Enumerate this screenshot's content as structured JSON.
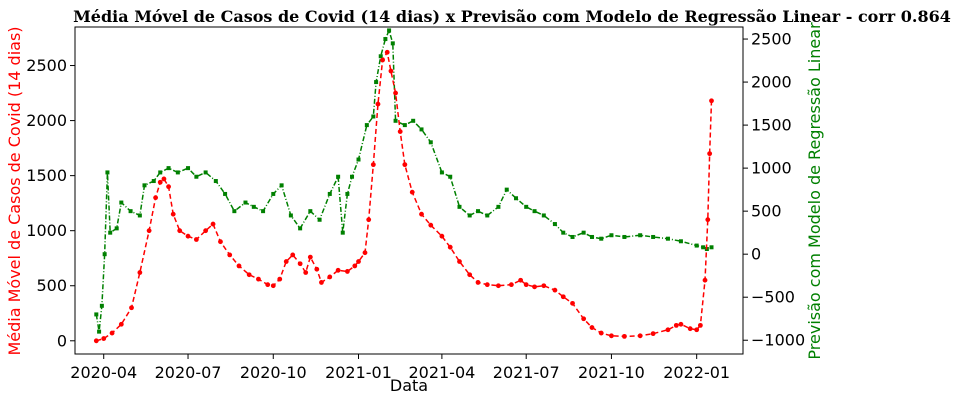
{
  "chart_data": {
    "type": "line",
    "title": "Média Móvel de Casos de Covid (14 dias) x Previsão com Modelo de Regressão Linear - corr 0.864",
    "xlabel": "Data",
    "ylabel_left": "Média Móvel de Casos de Covid (14 dias)",
    "ylabel_right": "Previsão com Modelo de Regressão Linear",
    "xlim": [
      "2020-03-01",
      "2022-02-20"
    ],
    "ylim_left": [
      -120,
      2850
    ],
    "ylim_right": [
      -1160,
      2640
    ],
    "x_ticks": [
      {
        "date": "2020-04-01",
        "label": "2020-04"
      },
      {
        "date": "2020-07-01",
        "label": "2020-07"
      },
      {
        "date": "2020-10-01",
        "label": "2020-10"
      },
      {
        "date": "2021-01-01",
        "label": "2021-01"
      },
      {
        "date": "2021-04-01",
        "label": "2021-04"
      },
      {
        "date": "2021-07-01",
        "label": "2021-07"
      },
      {
        "date": "2021-10-01",
        "label": "2021-10"
      },
      {
        "date": "2022-01-01",
        "label": "2022-01"
      }
    ],
    "y_ticks_left": [
      0,
      500,
      1000,
      1500,
      2000,
      2500
    ],
    "y_ticks_right": [
      -1000,
      -500,
      0,
      500,
      1000,
      1500,
      2000,
      2500
    ],
    "colors": {
      "left": "#ff0000",
      "right": "#008000"
    },
    "grid": false,
    "series": [
      {
        "axis": "left",
        "color": "#ff0000",
        "points": [
          [
            "2020-03-24",
            0
          ],
          [
            "2020-04-01",
            20
          ],
          [
            "2020-04-10",
            70
          ],
          [
            "2020-04-20",
            150
          ],
          [
            "2020-05-01",
            300
          ],
          [
            "2020-05-10",
            620
          ],
          [
            "2020-05-20",
            1000
          ],
          [
            "2020-05-27",
            1300
          ],
          [
            "2020-06-01",
            1440
          ],
          [
            "2020-06-05",
            1470
          ],
          [
            "2020-06-10",
            1400
          ],
          [
            "2020-06-15",
            1150
          ],
          [
            "2020-06-22",
            1000
          ],
          [
            "2020-07-01",
            950
          ],
          [
            "2020-07-10",
            920
          ],
          [
            "2020-07-20",
            1000
          ],
          [
            "2020-07-28",
            1060
          ],
          [
            "2020-08-05",
            900
          ],
          [
            "2020-08-15",
            780
          ],
          [
            "2020-08-25",
            680
          ],
          [
            "2020-09-05",
            600
          ],
          [
            "2020-09-15",
            560
          ],
          [
            "2020-09-25",
            510
          ],
          [
            "2020-10-01",
            500
          ],
          [
            "2020-10-08",
            560
          ],
          [
            "2020-10-15",
            720
          ],
          [
            "2020-10-22",
            780
          ],
          [
            "2020-10-30",
            700
          ],
          [
            "2020-11-05",
            620
          ],
          [
            "2020-11-10",
            760
          ],
          [
            "2020-11-17",
            650
          ],
          [
            "2020-11-22",
            530
          ],
          [
            "2020-12-01",
            580
          ],
          [
            "2020-12-10",
            640
          ],
          [
            "2020-12-20",
            630
          ],
          [
            "2020-12-28",
            680
          ],
          [
            "2021-01-01",
            720
          ],
          [
            "2021-01-08",
            800
          ],
          [
            "2021-01-12",
            1100
          ],
          [
            "2021-01-17",
            1600
          ],
          [
            "2021-01-22",
            2150
          ],
          [
            "2021-01-27",
            2550
          ],
          [
            "2021-02-01",
            2620
          ],
          [
            "2021-02-05",
            2450
          ],
          [
            "2021-02-10",
            2250
          ],
          [
            "2021-02-15",
            1900
          ],
          [
            "2021-02-20",
            1600
          ],
          [
            "2021-02-28",
            1350
          ],
          [
            "2021-03-10",
            1150
          ],
          [
            "2021-03-20",
            1050
          ],
          [
            "2021-04-01",
            950
          ],
          [
            "2021-04-10",
            850
          ],
          [
            "2021-04-20",
            720
          ],
          [
            "2021-05-01",
            600
          ],
          [
            "2021-05-10",
            530
          ],
          [
            "2021-05-20",
            510
          ],
          [
            "2021-06-01",
            500
          ],
          [
            "2021-06-15",
            510
          ],
          [
            "2021-06-25",
            550
          ],
          [
            "2021-07-01",
            510
          ],
          [
            "2021-07-10",
            490
          ],
          [
            "2021-07-20",
            500
          ],
          [
            "2021-08-01",
            460
          ],
          [
            "2021-08-10",
            400
          ],
          [
            "2021-08-20",
            340
          ],
          [
            "2021-09-01",
            200
          ],
          [
            "2021-09-10",
            120
          ],
          [
            "2021-09-20",
            70
          ],
          [
            "2021-10-01",
            45
          ],
          [
            "2021-10-15",
            40
          ],
          [
            "2021-11-01",
            45
          ],
          [
            "2021-11-15",
            65
          ],
          [
            "2021-12-01",
            100
          ],
          [
            "2021-12-10",
            140
          ],
          [
            "2021-12-15",
            150
          ],
          [
            "2021-12-25",
            110
          ],
          [
            "2022-01-01",
            100
          ],
          [
            "2022-01-05",
            140
          ],
          [
            "2022-01-10",
            550
          ],
          [
            "2022-01-13",
            1100
          ],
          [
            "2022-01-15",
            1700
          ],
          [
            "2022-01-17",
            2180
          ]
        ]
      },
      {
        "axis": "right",
        "color": "#008000",
        "points": [
          [
            "2020-03-24",
            -700
          ],
          [
            "2020-03-27",
            -900
          ],
          [
            "2020-03-30",
            -600
          ],
          [
            "2020-04-02",
            0
          ],
          [
            "2020-04-05",
            950
          ],
          [
            "2020-04-08",
            250
          ],
          [
            "2020-04-15",
            300
          ],
          [
            "2020-04-20",
            600
          ],
          [
            "2020-04-30",
            500
          ],
          [
            "2020-05-10",
            450
          ],
          [
            "2020-05-15",
            800
          ],
          [
            "2020-05-25",
            850
          ],
          [
            "2020-06-01",
            950
          ],
          [
            "2020-06-10",
            1000
          ],
          [
            "2020-06-20",
            950
          ],
          [
            "2020-07-01",
            1000
          ],
          [
            "2020-07-10",
            900
          ],
          [
            "2020-07-20",
            950
          ],
          [
            "2020-07-31",
            850
          ],
          [
            "2020-08-10",
            700
          ],
          [
            "2020-08-20",
            500
          ],
          [
            "2020-09-01",
            600
          ],
          [
            "2020-09-10",
            550
          ],
          [
            "2020-09-20",
            500
          ],
          [
            "2020-10-01",
            700
          ],
          [
            "2020-10-10",
            800
          ],
          [
            "2020-10-20",
            450
          ],
          [
            "2020-10-30",
            300
          ],
          [
            "2020-11-10",
            500
          ],
          [
            "2020-11-20",
            400
          ],
          [
            "2020-12-01",
            700
          ],
          [
            "2020-12-10",
            900
          ],
          [
            "2020-12-15",
            250
          ],
          [
            "2020-12-20",
            700
          ],
          [
            "2020-12-25",
            900
          ],
          [
            "2021-01-01",
            1100
          ],
          [
            "2021-01-10",
            1500
          ],
          [
            "2021-01-17",
            1600
          ],
          [
            "2021-01-20",
            2000
          ],
          [
            "2021-01-25",
            2300
          ],
          [
            "2021-01-30",
            2500
          ],
          [
            "2021-02-03",
            2600
          ],
          [
            "2021-02-07",
            2450
          ],
          [
            "2021-02-10",
            1550
          ],
          [
            "2021-02-20",
            1500
          ],
          [
            "2021-03-01",
            1550
          ],
          [
            "2021-03-10",
            1450
          ],
          [
            "2021-03-20",
            1300
          ],
          [
            "2021-04-01",
            950
          ],
          [
            "2021-04-10",
            900
          ],
          [
            "2021-04-20",
            550
          ],
          [
            "2021-05-01",
            450
          ],
          [
            "2021-05-10",
            500
          ],
          [
            "2021-05-20",
            450
          ],
          [
            "2021-06-01",
            550
          ],
          [
            "2021-06-10",
            750
          ],
          [
            "2021-06-20",
            650
          ],
          [
            "2021-07-01",
            550
          ],
          [
            "2021-07-10",
            500
          ],
          [
            "2021-07-20",
            450
          ],
          [
            "2021-08-01",
            350
          ],
          [
            "2021-08-10",
            250
          ],
          [
            "2021-08-20",
            200
          ],
          [
            "2021-09-01",
            250
          ],
          [
            "2021-09-10",
            200
          ],
          [
            "2021-09-20",
            180
          ],
          [
            "2021-10-01",
            220
          ],
          [
            "2021-10-15",
            200
          ],
          [
            "2021-11-01",
            220
          ],
          [
            "2021-11-15",
            200
          ],
          [
            "2021-12-01",
            180
          ],
          [
            "2021-12-15",
            150
          ],
          [
            "2022-01-01",
            100
          ],
          [
            "2022-01-08",
            80
          ],
          [
            "2022-01-12",
            60
          ],
          [
            "2022-01-17",
            80
          ]
        ]
      }
    ]
  }
}
